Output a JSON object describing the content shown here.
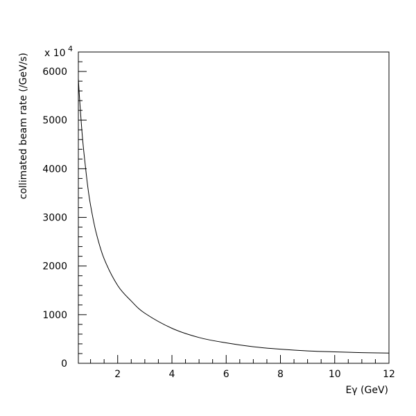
{
  "chart_data": {
    "type": "line",
    "title": "",
    "xlabel": "Eγ (GeV)",
    "ylabel": "collimated beam rate (/GeV/s)",
    "y_multiplier_label": "x 10",
    "y_multiplier_exponent": "4",
    "xlim": [
      0.55,
      12
    ],
    "ylim": [
      0,
      6400
    ],
    "x_ticks": [
      2,
      4,
      6,
      8,
      10,
      12
    ],
    "y_ticks": [
      0,
      1000,
      2000,
      3000,
      4000,
      5000,
      6000
    ],
    "grid": false,
    "series": [
      {
        "x": [
          0.55,
          0.6,
          0.7,
          0.8,
          0.9,
          1.0,
          1.2,
          1.5,
          2.0,
          2.5,
          3.0,
          4.0,
          5.0,
          6.0,
          7.0,
          8.0,
          9.0,
          10.0,
          11.0,
          12.0
        ],
        "y": [
          5850,
          5400,
          4650,
          4100,
          3620,
          3250,
          2700,
          2150,
          1600,
          1280,
          1030,
          720,
          530,
          420,
          340,
          290,
          255,
          235,
          220,
          210
        ]
      }
    ]
  }
}
